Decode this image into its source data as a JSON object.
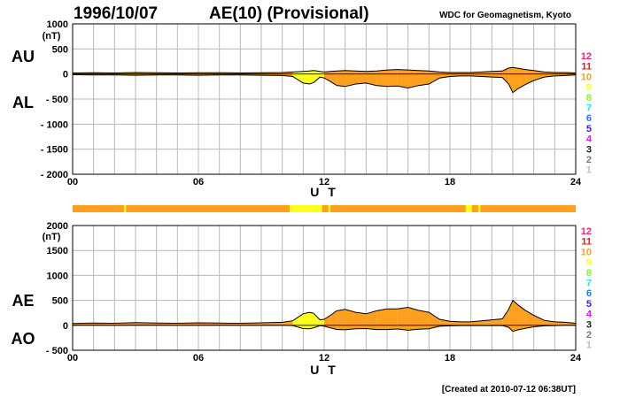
{
  "header": {
    "date": "1996/10/07",
    "index_title": "AE(10) (Provisional)",
    "source": "WDC for Geomagnetism, Kyoto",
    "created": "[Created at 2010-07-12 06:38UT]"
  },
  "colors": {
    "frame": "#000000",
    "grid": "#b8b8b8",
    "fill_10": "#ff9f1e",
    "fill_9": "#ffff1e",
    "bar_base": "#ff9f1e",
    "bar_alt": "#ffff1e"
  },
  "station_legend": [
    {
      "label": "12",
      "color": "#ff1e78"
    },
    {
      "label": "11",
      "color": "#d7261e"
    },
    {
      "label": "10",
      "color": "#ff9f1e"
    },
    {
      "label": "9",
      "color": "#ffff1e"
    },
    {
      "label": "8",
      "color": "#78ff1e"
    },
    {
      "label": "7",
      "color": "#1ee6e6"
    },
    {
      "label": "6",
      "color": "#1e78ff"
    },
    {
      "label": "5",
      "color": "#3c1ee0"
    },
    {
      "label": "4",
      "color": "#c81ee6"
    },
    {
      "label": "3",
      "color": "#1e1e1e"
    },
    {
      "label": "2",
      "color": "#787878"
    },
    {
      "label": "1",
      "color": "#bebebe"
    }
  ],
  "station_bar": {
    "base_count": "10",
    "alt_segments": [
      {
        "from": 2.45,
        "to": 2.55,
        "count": "9"
      },
      {
        "from": 10.35,
        "to": 11.9,
        "count": "9"
      },
      {
        "from": 12.2,
        "to": 12.3,
        "count": "9"
      },
      {
        "from": 18.75,
        "to": 19.05,
        "count": "9"
      },
      {
        "from": 19.35,
        "to": 19.45,
        "count": "9"
      }
    ]
  },
  "chart_data": [
    {
      "type": "area",
      "panel": "AU/AL",
      "labels": {
        "upper": "AU",
        "lower": "AL"
      },
      "ylabel": "(nT)",
      "xlabel": "U T",
      "xlim": [
        0,
        24
      ],
      "ylim": [
        -2000,
        1000
      ],
      "yticks": [
        1000,
        500,
        0,
        -500,
        -1000,
        -1500,
        -2000
      ],
      "ytick_labels": [
        "1000",
        "500",
        "0",
        "- 500",
        "- 1000",
        "- 1500",
        "- 2000"
      ],
      "xticks": [
        0,
        6,
        12,
        18,
        24
      ],
      "xtick_labels": [
        "00",
        "06",
        "12",
        "18",
        "24"
      ],
      "grid": true,
      "x": [
        0,
        1,
        2,
        3,
        4,
        5,
        6,
        7,
        8,
        9,
        10,
        10.5,
        11,
        11.3,
        11.5,
        11.8,
        12,
        12.3,
        12.6,
        13,
        13.5,
        14,
        14.5,
        15,
        15.5,
        16,
        16.5,
        17,
        17.5,
        18,
        18.5,
        19,
        19.5,
        20,
        20.5,
        20.8,
        21,
        21.3,
        21.6,
        22,
        22.5,
        23,
        23.5,
        24
      ],
      "series": [
        {
          "name": "AU",
          "values": [
            20,
            25,
            20,
            30,
            25,
            20,
            25,
            25,
            20,
            25,
            30,
            40,
            50,
            60,
            70,
            50,
            40,
            50,
            60,
            70,
            60,
            50,
            60,
            80,
            90,
            80,
            70,
            60,
            40,
            30,
            30,
            30,
            40,
            50,
            60,
            120,
            130,
            110,
            90,
            70,
            40,
            30,
            30,
            20
          ]
        },
        {
          "name": "AL",
          "values": [
            -15,
            -20,
            -20,
            -25,
            -20,
            -20,
            -25,
            -20,
            -20,
            -25,
            -30,
            -50,
            -180,
            -200,
            -170,
            -60,
            -80,
            -150,
            -230,
            -250,
            -200,
            -180,
            -230,
            -250,
            -240,
            -280,
            -230,
            -200,
            -80,
            -50,
            -40,
            -40,
            -50,
            -60,
            -70,
            -200,
            -370,
            -280,
            -210,
            -130,
            -60,
            -40,
            -30,
            -20
          ]
        }
      ],
      "fill_station_count": [
        10,
        10,
        10,
        10,
        10,
        10,
        10,
        10,
        10,
        10,
        10,
        9,
        9,
        9,
        9,
        9,
        10,
        10,
        10,
        10,
        10,
        10,
        10,
        10,
        10,
        10,
        10,
        10,
        10,
        10,
        10,
        10,
        10,
        10,
        10,
        10,
        10,
        10,
        10,
        10,
        10,
        10,
        10,
        10
      ]
    },
    {
      "type": "area",
      "panel": "AE/AO",
      "labels": {
        "upper": "AE",
        "lower": "AO"
      },
      "ylabel": "(nT)",
      "xlabel": "U T",
      "xlim": [
        0,
        24
      ],
      "ylim": [
        -500,
        2000
      ],
      "yticks": [
        2000,
        1500,
        1000,
        500,
        0,
        -500
      ],
      "ytick_labels": [
        "2000",
        "1500",
        "1000",
        "500",
        "0",
        "- 500"
      ],
      "xticks": [
        0,
        6,
        12,
        18,
        24
      ],
      "xtick_labels": [
        "00",
        "06",
        "12",
        "18",
        "24"
      ],
      "grid": true,
      "x": [
        0,
        1,
        2,
        3,
        4,
        5,
        6,
        7,
        8,
        9,
        10,
        10.5,
        11,
        11.3,
        11.5,
        11.8,
        12,
        12.3,
        12.6,
        13,
        13.5,
        14,
        14.5,
        15,
        15.5,
        16,
        16.5,
        17,
        17.5,
        18,
        18.5,
        19,
        19.5,
        20,
        20.5,
        20.8,
        21,
        21.3,
        21.6,
        22,
        22.5,
        23,
        23.5,
        24
      ],
      "series": [
        {
          "name": "AE",
          "values": [
            35,
            45,
            40,
            55,
            45,
            40,
            50,
            45,
            40,
            50,
            60,
            90,
            230,
            260,
            240,
            110,
            120,
            200,
            290,
            320,
            260,
            230,
            290,
            330,
            330,
            360,
            300,
            260,
            120,
            80,
            70,
            70,
            90,
            110,
            130,
            320,
            500,
            390,
            300,
            200,
            100,
            70,
            60,
            40
          ]
        },
        {
          "name": "AO",
          "values": [
            3,
            3,
            0,
            3,
            3,
            0,
            0,
            3,
            0,
            0,
            0,
            -5,
            -65,
            -70,
            -50,
            -5,
            -20,
            -50,
            -85,
            -90,
            -70,
            -65,
            -85,
            -85,
            -75,
            -100,
            -80,
            -70,
            -20,
            -10,
            -5,
            -5,
            -5,
            -5,
            -5,
            -40,
            -120,
            -85,
            -60,
            -30,
            -10,
            -5,
            0,
            0
          ]
        }
      ],
      "fill_station_count": [
        10,
        10,
        10,
        10,
        10,
        10,
        10,
        10,
        10,
        10,
        10,
        9,
        9,
        9,
        9,
        9,
        10,
        10,
        10,
        10,
        10,
        10,
        10,
        10,
        10,
        10,
        10,
        10,
        10,
        10,
        10,
        10,
        10,
        10,
        10,
        10,
        10,
        10,
        10,
        10,
        10,
        10,
        10,
        10
      ]
    }
  ]
}
